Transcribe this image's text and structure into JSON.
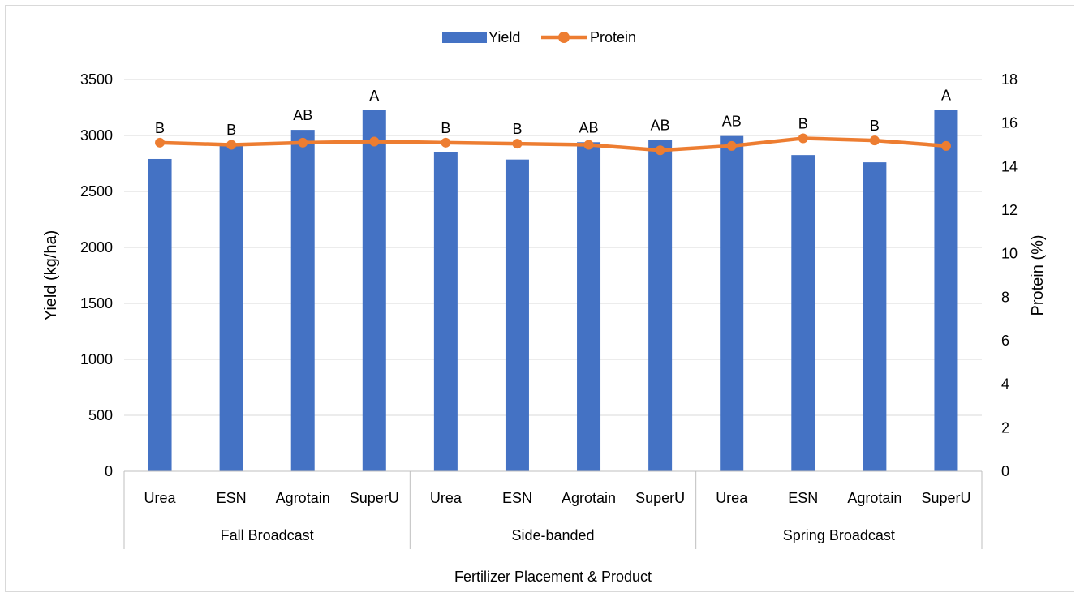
{
  "chart_data": {
    "type": "bar",
    "subtype": "bar-line-combo",
    "xlabel": "Fertilizer Placement & Product",
    "ylabel": "Yield (kg/ha)",
    "y2label": "Protein (%)",
    "ylim": [
      0,
      3500
    ],
    "yticks": [
      0,
      500,
      1000,
      1500,
      2000,
      2500,
      3000,
      3500
    ],
    "y2lim": [
      0,
      18
    ],
    "y2ticks": [
      0,
      2,
      4,
      6,
      8,
      10,
      12,
      14,
      16,
      18
    ],
    "grid": true,
    "legend_position": "top-center",
    "groups": [
      "Fall Broadcast",
      "Side-banded",
      "Spring Broadcast"
    ],
    "categories": [
      "Urea",
      "ESN",
      "Agrotain",
      "SuperU",
      "Urea",
      "ESN",
      "Agrotain",
      "SuperU",
      "Urea",
      "ESN",
      "Agrotain",
      "SuperU"
    ],
    "series": [
      {
        "name": "Yield",
        "type": "bar",
        "axis": "left",
        "color": "#4472c4",
        "values": [
          2790,
          2920,
          3050,
          3225,
          2855,
          2785,
          2940,
          2960,
          2995,
          2825,
          2760,
          3230
        ]
      },
      {
        "name": "Protein",
        "type": "line",
        "axis": "right",
        "color": "#ed7d31",
        "values": [
          15.1,
          15.0,
          15.1,
          15.15,
          15.1,
          15.05,
          15.0,
          14.75,
          14.95,
          15.3,
          15.2,
          14.95
        ]
      }
    ],
    "annotations": [
      "B",
      "B",
      "AB",
      "A",
      "B",
      "B",
      "AB",
      "AB",
      "AB",
      "B",
      "B",
      "A"
    ]
  }
}
